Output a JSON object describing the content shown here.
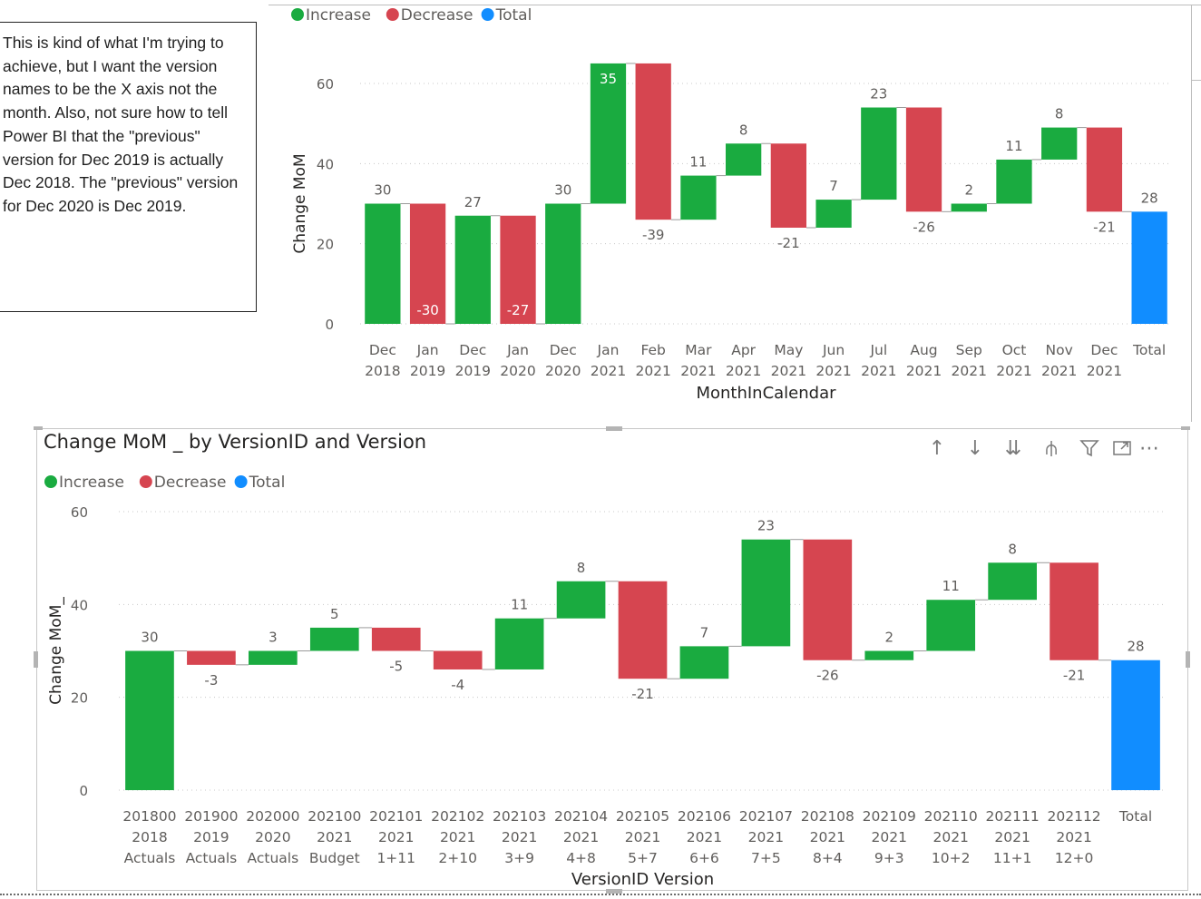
{
  "note": {
    "text": "This is kind of what I'm trying to achieve, but I want the version names to be the X axis not the month.  Also, not sure how to tell Power BI that the \"previous\" version for Dec 2019 is actually Dec 2018. The \"previous\" version for Dec 2020 is Dec 2019."
  },
  "colors": {
    "increase": "#1aab40",
    "decrease": "#d64550",
    "total": "#118dff"
  },
  "bottom_visual": {
    "title": "Change MoM _ by VersionID and Version",
    "toolbar": {
      "drill_up": "↑",
      "drill_down": "↓",
      "expand_next_level": "⇊",
      "expand_hierarchy": "⫛",
      "filter": "⚲",
      "focus_mode": "⤢",
      "more_options": "⋯"
    }
  },
  "chart_data": [
    {
      "type": "waterfall",
      "legend": [
        "Increase",
        "Decrease",
        "Total"
      ],
      "legend_placement": "top-left",
      "xlabel": "MonthInCalendar",
      "ylabel": "Change MoM",
      "ylim": [
        0,
        60
      ],
      "yticks": [
        0,
        20,
        40,
        60
      ],
      "grid": true,
      "categories": [
        [
          "Dec",
          "2018"
        ],
        [
          "Jan",
          "2019"
        ],
        [
          "Dec",
          "2019"
        ],
        [
          "Jan",
          "2020"
        ],
        [
          "Dec",
          "2020"
        ],
        [
          "Jan",
          "2021"
        ],
        [
          "Feb",
          "2021"
        ],
        [
          "Mar",
          "2021"
        ],
        [
          "Apr",
          "2021"
        ],
        [
          "May",
          "2021"
        ],
        [
          "Jun",
          "2021"
        ],
        [
          "Jul",
          "2021"
        ],
        [
          "Aug",
          "2021"
        ],
        [
          "Sep",
          "2021"
        ],
        [
          "Oct",
          "2021"
        ],
        [
          "Nov",
          "2021"
        ],
        [
          "Dec",
          "2021"
        ],
        [
          "Total"
        ]
      ],
      "bars": [
        {
          "start": 0,
          "end": 30,
          "label": "30",
          "kind": "increase"
        },
        {
          "start": 30,
          "end": 0,
          "label": "-30",
          "kind": "decrease"
        },
        {
          "start": 0,
          "end": 27,
          "label": "27",
          "kind": "increase"
        },
        {
          "start": 27,
          "end": 0,
          "label": "-27",
          "kind": "decrease"
        },
        {
          "start": 0,
          "end": 30,
          "label": "30",
          "kind": "increase"
        },
        {
          "start": 30,
          "end": 65,
          "label": "35",
          "kind": "increase"
        },
        {
          "start": 65,
          "end": 26,
          "label": "-39",
          "kind": "decrease"
        },
        {
          "start": 26,
          "end": 37,
          "label": "11",
          "kind": "increase"
        },
        {
          "start": 37,
          "end": 45,
          "label": "8",
          "kind": "increase"
        },
        {
          "start": 45,
          "end": 24,
          "label": "-21",
          "kind": "decrease"
        },
        {
          "start": 24,
          "end": 31,
          "label": "7",
          "kind": "increase"
        },
        {
          "start": 31,
          "end": 54,
          "label": "23",
          "kind": "increase"
        },
        {
          "start": 54,
          "end": 28,
          "label": "-26",
          "kind": "decrease"
        },
        {
          "start": 28,
          "end": 30,
          "label": "2",
          "kind": "increase"
        },
        {
          "start": 30,
          "end": 41,
          "label": "11",
          "kind": "increase"
        },
        {
          "start": 41,
          "end": 49,
          "label": "8",
          "kind": "increase"
        },
        {
          "start": 49,
          "end": 28,
          "label": "-21",
          "kind": "decrease"
        },
        {
          "start": 0,
          "end": 28,
          "label": "28",
          "kind": "total"
        }
      ]
    },
    {
      "type": "waterfall",
      "legend": [
        "Increase",
        "Decrease",
        "Total"
      ],
      "legend_placement": "top-left",
      "xlabel": "VersionID Version",
      "ylabel": "Change MoM_",
      "ylim": [
        0,
        60
      ],
      "yticks": [
        0,
        20,
        40,
        60
      ],
      "grid": true,
      "categories": [
        [
          "201800",
          "2018",
          "Actuals"
        ],
        [
          "201900",
          "2019",
          "Actuals"
        ],
        [
          "202000",
          "2020",
          "Actuals"
        ],
        [
          "202100",
          "2021",
          "Budget"
        ],
        [
          "202101",
          "2021",
          "1+11"
        ],
        [
          "202102",
          "2021",
          "2+10"
        ],
        [
          "202103",
          "2021",
          "3+9"
        ],
        [
          "202104",
          "2021",
          "4+8"
        ],
        [
          "202105",
          "2021",
          "5+7"
        ],
        [
          "202106",
          "2021",
          "6+6"
        ],
        [
          "202107",
          "2021",
          "7+5"
        ],
        [
          "202108",
          "2021",
          "8+4"
        ],
        [
          "202109",
          "2021",
          "9+3"
        ],
        [
          "202110",
          "2021",
          "10+2"
        ],
        [
          "202111",
          "2021",
          "11+1"
        ],
        [
          "202112",
          "2021",
          "12+0"
        ],
        [
          "Total"
        ]
      ],
      "bars": [
        {
          "start": 0,
          "end": 30,
          "label": "30",
          "kind": "increase"
        },
        {
          "start": 30,
          "end": 27,
          "label": "-3",
          "kind": "decrease"
        },
        {
          "start": 27,
          "end": 30,
          "label": "3",
          "kind": "increase"
        },
        {
          "start": 30,
          "end": 35,
          "label": "5",
          "kind": "increase"
        },
        {
          "start": 35,
          "end": 30,
          "label": "-5",
          "kind": "decrease"
        },
        {
          "start": 30,
          "end": 26,
          "label": "-4",
          "kind": "decrease"
        },
        {
          "start": 26,
          "end": 37,
          "label": "11",
          "kind": "increase"
        },
        {
          "start": 37,
          "end": 45,
          "label": "8",
          "kind": "increase"
        },
        {
          "start": 45,
          "end": 24,
          "label": "-21",
          "kind": "decrease"
        },
        {
          "start": 24,
          "end": 31,
          "label": "7",
          "kind": "increase"
        },
        {
          "start": 31,
          "end": 54,
          "label": "23",
          "kind": "increase"
        },
        {
          "start": 54,
          "end": 28,
          "label": "-26",
          "kind": "decrease"
        },
        {
          "start": 28,
          "end": 30,
          "label": "2",
          "kind": "increase"
        },
        {
          "start": 30,
          "end": 41,
          "label": "11",
          "kind": "increase"
        },
        {
          "start": 41,
          "end": 49,
          "label": "8",
          "kind": "increase"
        },
        {
          "start": 49,
          "end": 28,
          "label": "-21",
          "kind": "decrease"
        },
        {
          "start": 0,
          "end": 28,
          "label": "28",
          "kind": "total"
        }
      ]
    }
  ]
}
